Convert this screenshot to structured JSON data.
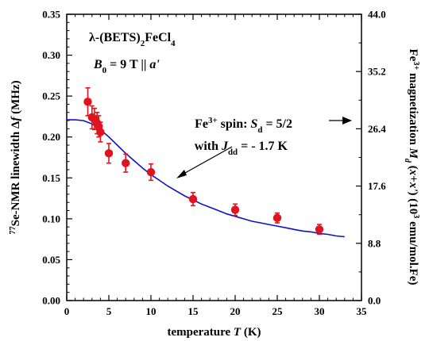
{
  "chart_data": {
    "type": "scatter",
    "x_axis": {
      "label_parts": [
        {
          "t": "temperature "
        },
        {
          "t": "T",
          "style": "italic"
        },
        {
          "t": " (K)"
        }
      ],
      "range": [
        0,
        35
      ],
      "ticks": [
        0,
        5,
        10,
        15,
        20,
        25,
        30,
        35
      ]
    },
    "y_axis_left": {
      "label_parts": [
        {
          "t": "77",
          "style": "sup"
        },
        {
          "t": "Se-NMR linewidth  "
        },
        {
          "t": "Δ"
        },
        {
          "t": "f",
          "style": "italic"
        },
        {
          "t": "  (MHz)"
        }
      ],
      "range": [
        0,
        0.35
      ],
      "ticks": [
        "0.00",
        "0.05",
        "0.10",
        "0.15",
        "0.20",
        "0.25",
        "0.30",
        "0.35"
      ]
    },
    "y_axis_right": {
      "label_parts": [
        {
          "t": "Fe"
        },
        {
          "t": "3+",
          "style": "sup"
        },
        {
          "t": " magnetization "
        },
        {
          "t": "M",
          "style": "italic"
        },
        {
          "t": "d",
          "style": "sub-italic"
        },
        {
          "t": " ("
        },
        {
          "t": "x",
          "style": "italic"
        },
        {
          "t": "+"
        },
        {
          "t": "x'",
          "style": "italic"
        },
        {
          "t": ") (10"
        },
        {
          "t": "3",
          "style": "sup"
        },
        {
          "t": " emu/mol.Fe)"
        }
      ],
      "range": [
        0,
        44
      ],
      "ticks": [
        "0.0",
        "8.8",
        "17.6",
        "26.4",
        "35.2",
        "44.0"
      ]
    },
    "series": [
      {
        "kind": "points",
        "color": "#e0141e",
        "x": [
          2.5,
          3.0,
          3.3,
          3.6,
          3.8,
          4.0,
          5.0,
          7.0,
          10.0,
          15.0,
          20.0,
          25.0,
          30.0
        ],
        "y": [
          0.243,
          0.224,
          0.222,
          0.217,
          0.213,
          0.206,
          0.18,
          0.168,
          0.157,
          0.124,
          0.111,
          0.101,
          0.087
        ],
        "err": [
          0.017,
          0.014,
          0.013,
          0.013,
          0.013,
          0.012,
          0.012,
          0.011,
          0.01,
          0.008,
          0.007,
          0.006,
          0.006
        ]
      },
      {
        "kind": "curve",
        "color": "#1010c8",
        "x": [
          0,
          1,
          2,
          3,
          4,
          5,
          6,
          7,
          8,
          9,
          10,
          11,
          12,
          13,
          14,
          15,
          16,
          17,
          18,
          19,
          20,
          21,
          22,
          23,
          24,
          25,
          26,
          27,
          28,
          29,
          30,
          31,
          32,
          33
        ],
        "y": [
          0.221,
          0.221,
          0.22,
          0.216,
          0.209,
          0.2,
          0.19,
          0.18,
          0.171,
          0.162,
          0.154,
          0.147,
          0.14,
          0.134,
          0.128,
          0.123,
          0.118,
          0.114,
          0.11,
          0.106,
          0.103,
          0.1,
          0.097,
          0.095,
          0.093,
          0.091,
          0.089,
          0.087,
          0.085,
          0.084,
          0.082,
          0.081,
          0.079,
          0.078
        ]
      }
    ],
    "annotations": [
      {
        "id": "compound",
        "parts": [
          {
            "t": "λ"
          },
          {
            "t": "-(BETS)"
          },
          {
            "t": "2",
            "style": "sub"
          },
          {
            "t": "FeCl"
          },
          {
            "t": "4",
            "style": "sub"
          }
        ]
      },
      {
        "id": "field",
        "parts": [
          {
            "t": "B",
            "style": "italic"
          },
          {
            "t": "0",
            "style": "sub"
          },
          {
            "t": " = 9 T  ||  "
          },
          {
            "t": "a'",
            "style": "italic"
          }
        ]
      },
      {
        "id": "spin",
        "parts": [
          {
            "t": "Fe"
          },
          {
            "t": "3+",
            "style": "sup"
          },
          {
            "t": " spin: "
          },
          {
            "t": "S",
            "style": "italic"
          },
          {
            "t": "d",
            "style": "sub"
          },
          {
            "t": " = 5/2"
          }
        ]
      },
      {
        "id": "coupling",
        "parts": [
          {
            "t": "with "
          },
          {
            "t": "J",
            "style": "italic"
          },
          {
            "t": "dd",
            "style": "sub"
          },
          {
            "t": " = - 1.7 K"
          }
        ]
      }
    ]
  }
}
